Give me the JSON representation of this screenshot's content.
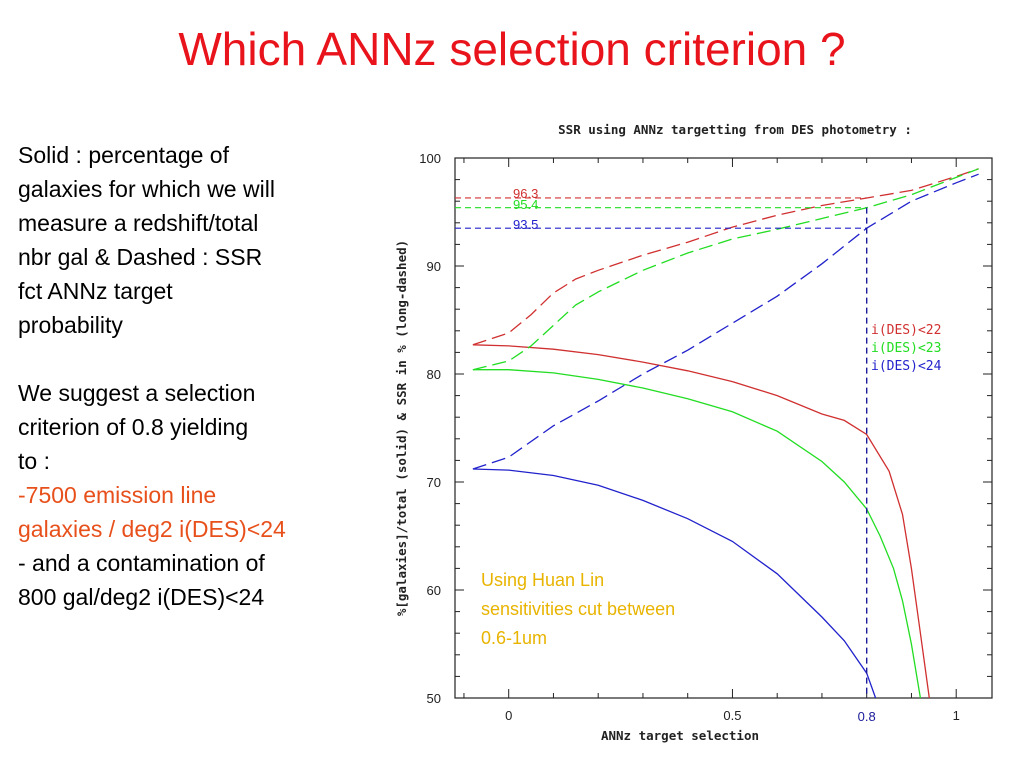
{
  "slide": {
    "title": "Which ANNz selection criterion ?",
    "paragraph1": [
      "Solid : percentage of",
      "galaxies for which we will",
      "measure a redshift/total",
      "nbr gal & Dashed : SSR",
      "fct ANNz target",
      "probability"
    ],
    "paragraph2": [
      "We suggest a selection",
      "criterion of 0.8 yielding",
      "to :"
    ],
    "highlight": [
      "-7500 emission line",
      "galaxies / deg2 i(DES)<24"
    ],
    "paragraph3": [
      "- and a contamination of",
      "800 gal/deg2 i(DES)<24"
    ]
  },
  "colors": {
    "title": "#e8131b",
    "highlight": "#e8501b",
    "annotation": "#e8b400",
    "red": "#d03030",
    "green": "#22dd22",
    "blue": "#2222cc",
    "cut": "#1a1a9a"
  },
  "chart_data": {
    "type": "line",
    "title": "SSR using ANNz targetting from DES photometry :",
    "xlabel": "ANNz target selection",
    "ylabel": "%[galaxies]/total (solid) & SSR in % (long-dashed)",
    "xlim": [
      -0.12,
      1.08
    ],
    "ylim": [
      50,
      100
    ],
    "xticks": [
      "0",
      "0.5",
      "1"
    ],
    "yticks": [
      "50",
      "60",
      "70",
      "80",
      "90",
      "100"
    ],
    "legend": [
      "i(DES)<22",
      "i(DES)<23",
      "i(DES)<24"
    ],
    "legend_position": "right",
    "cut": {
      "x": 0.8,
      "label": "0.8"
    },
    "ssr_labels": [
      "96.3",
      "95.4",
      "93.5"
    ],
    "annotation": [
      "Using Huan Lin",
      "sensitivities cut between",
      "0.6-1um"
    ],
    "series": [
      {
        "name": "i(DES)<22",
        "style": "solid",
        "x": [
          -0.08,
          0.0,
          0.1,
          0.2,
          0.3,
          0.4,
          0.5,
          0.6,
          0.7,
          0.75,
          0.8,
          0.85,
          0.88,
          0.9,
          0.92,
          0.94
        ],
        "y": [
          82.7,
          82.6,
          82.3,
          81.8,
          81.1,
          80.3,
          79.3,
          78.0,
          76.3,
          75.7,
          74.4,
          71.0,
          67.0,
          62.0,
          56.0,
          50.0
        ]
      },
      {
        "name": "i(DES)<23",
        "style": "solid",
        "x": [
          -0.08,
          0.0,
          0.1,
          0.2,
          0.3,
          0.4,
          0.5,
          0.6,
          0.7,
          0.75,
          0.8,
          0.83,
          0.86,
          0.88,
          0.9,
          0.92
        ],
        "y": [
          80.4,
          80.4,
          80.1,
          79.5,
          78.7,
          77.7,
          76.5,
          74.7,
          71.9,
          70.0,
          67.5,
          65.0,
          62.0,
          59.0,
          55.0,
          50.0
        ]
      },
      {
        "name": "i(DES)<24",
        "style": "solid",
        "x": [
          -0.08,
          0.0,
          0.1,
          0.2,
          0.3,
          0.4,
          0.5,
          0.6,
          0.7,
          0.75,
          0.8,
          0.82
        ],
        "y": [
          71.2,
          71.1,
          70.6,
          69.7,
          68.3,
          66.6,
          64.5,
          61.5,
          57.5,
          55.3,
          52.3,
          50.0
        ]
      },
      {
        "name": "i(DES)<22",
        "style": "dashed",
        "x": [
          -0.08,
          0.0,
          0.05,
          0.1,
          0.15,
          0.2,
          0.3,
          0.4,
          0.5,
          0.6,
          0.7,
          0.8,
          0.9,
          1.0,
          1.05
        ],
        "y": [
          82.7,
          83.8,
          85.5,
          87.5,
          88.8,
          89.6,
          91.0,
          92.2,
          93.6,
          94.7,
          95.6,
          96.3,
          97.0,
          98.3,
          99.0
        ]
      },
      {
        "name": "i(DES)<23",
        "style": "dashed",
        "x": [
          -0.08,
          0.0,
          0.05,
          0.1,
          0.15,
          0.2,
          0.3,
          0.4,
          0.5,
          0.6,
          0.7,
          0.8,
          0.9,
          1.0,
          1.05
        ],
        "y": [
          80.4,
          81.2,
          82.6,
          84.5,
          86.4,
          87.6,
          89.6,
          91.2,
          92.5,
          93.4,
          94.4,
          95.4,
          96.6,
          98.2,
          99.0
        ]
      },
      {
        "name": "i(DES)<24",
        "style": "dashed",
        "x": [
          -0.08,
          0.0,
          0.1,
          0.2,
          0.3,
          0.4,
          0.5,
          0.6,
          0.7,
          0.8,
          0.9,
          1.0,
          1.05
        ],
        "y": [
          71.2,
          72.3,
          75.2,
          77.5,
          80.0,
          82.2,
          84.7,
          87.2,
          90.2,
          93.5,
          96.0,
          97.7,
          98.5
        ]
      }
    ]
  }
}
